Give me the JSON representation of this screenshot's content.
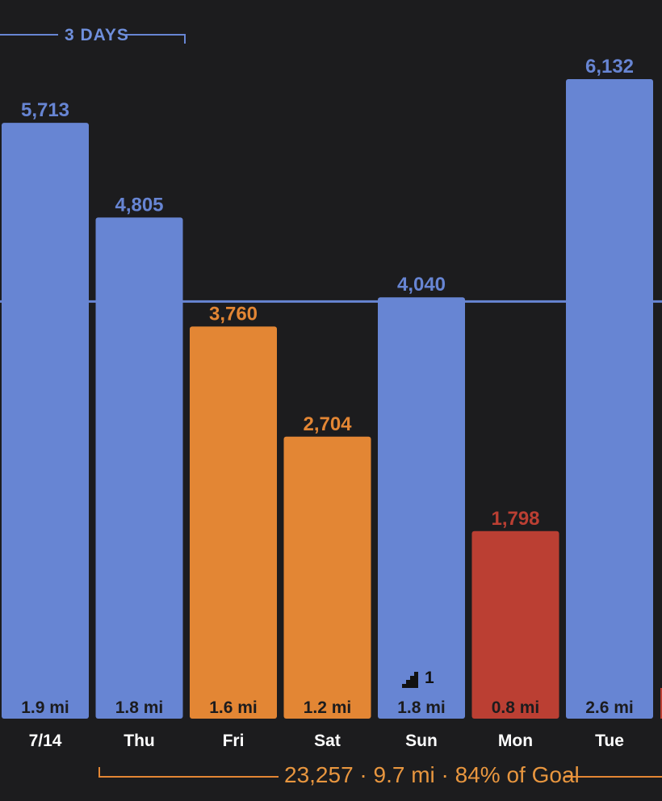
{
  "streak": {
    "label": "3 DAYS"
  },
  "summary": {
    "text": "23,257 · 9.7 mi · 84% of Goal"
  },
  "colors": {
    "background": "#1c1c1e",
    "blue": "#6785d3",
    "orange": "#e38634",
    "red": "#bb3f33",
    "streak_text": "#6f8fdc",
    "summary_text": "#e8963f",
    "day_label": "#ffffff",
    "distance_text": "#1c1c1e"
  },
  "chart_data": {
    "type": "bar",
    "categories": [
      "7/14",
      "Thu",
      "Fri",
      "Sat",
      "Sun",
      "Mon",
      "Tue"
    ],
    "values": [
      5713,
      4805,
      3760,
      2704,
      4040,
      1798,
      6132
    ],
    "value_labels": [
      "5,713",
      "4,805",
      "3,760",
      "2,704",
      "4,040",
      "1,798",
      "6,132"
    ],
    "distance_labels": [
      "1.9 mi",
      "1.8 mi",
      "1.6 mi",
      "1.2 mi",
      "1.8 mi",
      "0.8 mi",
      "2.6 mi"
    ],
    "bar_colors": [
      "blue",
      "blue",
      "orange",
      "orange",
      "blue",
      "red",
      "blue"
    ],
    "goal_line": 4000,
    "flights_badge": {
      "day": "Sun",
      "icon": "stairs-icon",
      "value": "1"
    },
    "ylim": [
      0,
      6132
    ]
  }
}
